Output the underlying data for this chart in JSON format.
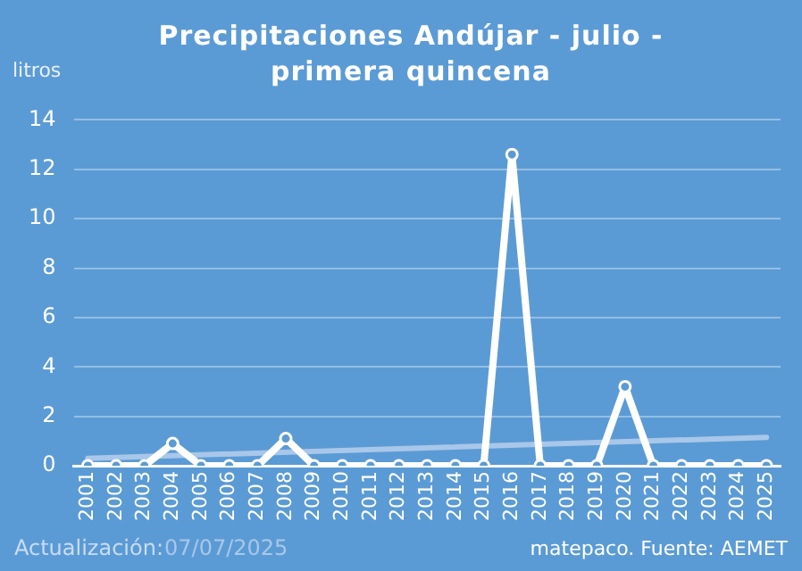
{
  "chart_data": {
    "type": "line",
    "title": "Precipitaciones Andújar - julio - primera quincena",
    "ylabel": "litros",
    "x": [
      2001,
      2002,
      2003,
      2004,
      2005,
      2006,
      2007,
      2008,
      2009,
      2010,
      2011,
      2012,
      2013,
      2014,
      2015,
      2016,
      2017,
      2018,
      2019,
      2020,
      2021,
      2022,
      2023,
      2024,
      2025
    ],
    "xlim": [
      2000.5,
      2025.5
    ],
    "xticks": [
      2001,
      2002,
      2003,
      2004,
      2005,
      2006,
      2007,
      2008,
      2009,
      2010,
      2011,
      2012,
      2013,
      2014,
      2015,
      2016,
      2017,
      2018,
      2019,
      2020,
      2021,
      2022,
      2023,
      2024,
      2025
    ],
    "ylim": [
      0,
      14
    ],
    "yticks": [
      0,
      2,
      4,
      6,
      8,
      10,
      12,
      14
    ],
    "series": [
      {
        "color": "#ffffff",
        "marker": "circle",
        "values": [
          0,
          0,
          0,
          0.9,
          0,
          0,
          0,
          1.1,
          0,
          0,
          0,
          0,
          0,
          0,
          0,
          12.6,
          0,
          0,
          0,
          3.2,
          0,
          0,
          0,
          0,
          0
        ]
      },
      {
        "type": "line",
        "color": "#a9c7e9",
        "marker": "none",
        "x": [
          2001,
          2025
        ],
        "values": [
          0.3,
          1.15
        ]
      }
    ],
    "grid": "y",
    "line_style": "solid",
    "annotations": [
      "Actualización:",
      "07/07/2025",
      "matepaco. Fuente: AEMET"
    ]
  }
}
